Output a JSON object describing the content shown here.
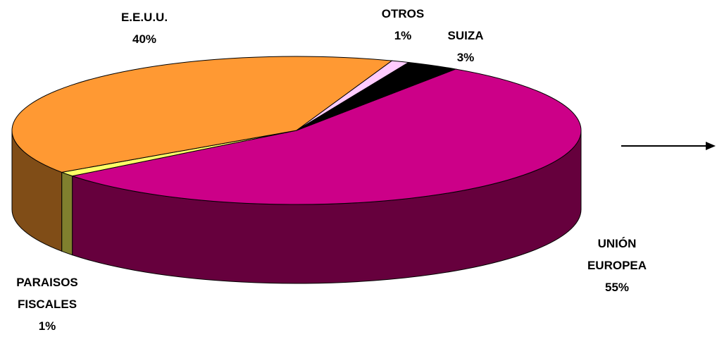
{
  "chart_data": {
    "type": "pie",
    "categories": [
      "UNIÓN EUROPEA",
      "PARAISOS FISCALES",
      "E.E.U.U.",
      "OTROS",
      "SUIZA"
    ],
    "values": [
      55,
      1,
      40,
      1,
      3
    ],
    "value_labels": [
      "55%",
      "1%",
      "40%",
      "1%",
      "3%"
    ],
    "colors": [
      "#cc0088",
      "#ffff66",
      "#ff9933",
      "#ffccff",
      "#000000"
    ]
  }
}
